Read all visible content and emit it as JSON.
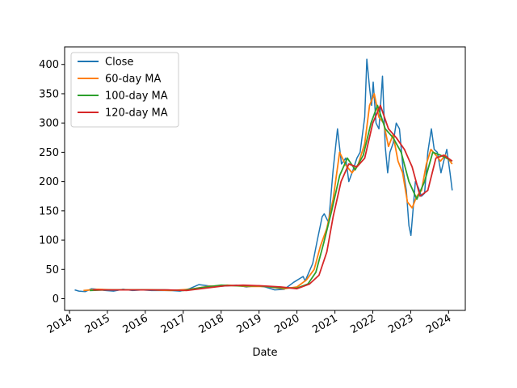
{
  "chart_data": {
    "type": "line",
    "title": "",
    "xlabel": "Date",
    "ylabel": "",
    "xlim": [
      "2013-11-15",
      "2024-06-10"
    ],
    "ylim": [
      -20,
      430
    ],
    "grid": false,
    "legend_position": "top-left",
    "x_tick_labels": [
      "2014",
      "2015",
      "2016",
      "2017",
      "2018",
      "2019",
      "2020",
      "2021",
      "2022",
      "2023",
      "2024"
    ],
    "x_tick_dates": [
      "2014-01-01",
      "2015-01-01",
      "2016-01-01",
      "2017-01-01",
      "2018-01-01",
      "2019-01-01",
      "2020-01-01",
      "2021-01-01",
      "2022-01-01",
      "2023-01-01",
      "2024-01-01"
    ],
    "y_ticks": [
      0,
      50,
      100,
      150,
      200,
      250,
      300,
      350,
      400
    ],
    "series": [
      {
        "name": "Close",
        "color": "#1f77b4",
        "x": [
          "2014-02-20",
          "2014-04-01",
          "2014-06-01",
          "2014-08-01",
          "2014-10-01",
          "2014-12-15",
          "2015-03-01",
          "2015-06-01",
          "2015-09-01",
          "2015-12-01",
          "2016-03-01",
          "2016-06-01",
          "2016-09-01",
          "2016-12-01",
          "2017-03-01",
          "2017-06-01",
          "2017-09-01",
          "2017-12-01",
          "2018-03-01",
          "2018-06-01",
          "2018-09-01",
          "2018-12-01",
          "2019-03-01",
          "2019-06-01",
          "2019-09-01",
          "2019-12-01",
          "2020-03-01",
          "2020-03-20",
          "2020-06-01",
          "2020-07-15",
          "2020-08-31",
          "2020-09-20",
          "2020-11-01",
          "2020-12-15",
          "2021-01-26",
          "2021-03-05",
          "2021-04-15",
          "2021-05-15",
          "2021-06-25",
          "2021-08-01",
          "2021-09-01",
          "2021-10-15",
          "2021-11-04",
          "2021-12-01",
          "2021-12-20",
          "2022-01-05",
          "2022-02-01",
          "2022-03-01",
          "2022-04-04",
          "2022-05-01",
          "2022-05-24",
          "2022-06-15",
          "2022-07-15",
          "2022-08-15",
          "2022-09-15",
          "2022-10-20",
          "2022-11-20",
          "2022-12-15",
          "2023-01-03",
          "2023-02-15",
          "2023-03-15",
          "2023-04-15",
          "2023-05-15",
          "2023-06-15",
          "2023-07-19",
          "2023-08-15",
          "2023-09-15",
          "2023-10-20",
          "2023-11-15",
          "2023-12-15",
          "2024-01-15",
          "2024-02-05"
        ],
        "y": [
          15,
          13,
          12,
          17,
          16,
          14,
          13,
          16,
          14,
          15,
          14,
          14,
          14,
          13,
          17,
          24,
          22,
          21,
          22,
          23,
          20,
          22,
          20,
          15,
          16,
          28,
          38,
          30,
          60,
          100,
          140,
          145,
          130,
          220,
          290,
          230,
          240,
          200,
          220,
          240,
          250,
          310,
          409,
          360,
          330,
          370,
          300,
          290,
          380,
          260,
          215,
          250,
          265,
          300,
          290,
          220,
          185,
          125,
          108,
          200,
          190,
          175,
          180,
          250,
          290,
          255,
          250,
          215,
          235,
          255,
          215,
          185
        ]
      },
      {
        "name": "60-day MA",
        "color": "#ff7f0e",
        "x": [
          "2014-05-15",
          "2014-10-01",
          "2015-03-01",
          "2015-09-01",
          "2016-03-01",
          "2016-09-01",
          "2017-03-01",
          "2017-09-01",
          "2018-03-01",
          "2018-09-01",
          "2019-03-01",
          "2019-09-01",
          "2020-01-01",
          "2020-04-01",
          "2020-06-15",
          "2020-08-15",
          "2020-10-15",
          "2020-12-15",
          "2021-02-15",
          "2021-04-15",
          "2021-06-15",
          "2021-08-15",
          "2021-10-15",
          "2021-12-01",
          "2022-01-15",
          "2022-03-01",
          "2022-04-15",
          "2022-06-01",
          "2022-07-15",
          "2022-09-01",
          "2022-10-15",
          "2022-12-01",
          "2023-01-15",
          "2023-03-01",
          "2023-04-15",
          "2023-06-01",
          "2023-07-15",
          "2023-09-01",
          "2023-10-15",
          "2023-12-01",
          "2024-02-05"
        ],
        "y": [
          14,
          16,
          15,
          15,
          15,
          14,
          16,
          21,
          23,
          21,
          21,
          17,
          20,
          32,
          50,
          90,
          120,
          170,
          250,
          228,
          215,
          230,
          265,
          330,
          350,
          310,
          300,
          260,
          280,
          235,
          215,
          165,
          155,
          175,
          185,
          230,
          255,
          245,
          235,
          245,
          230
        ]
      },
      {
        "name": "100-day MA",
        "color": "#2ca02c",
        "x": [
          "2014-07-15",
          "2015-01-01",
          "2015-07-01",
          "2016-01-01",
          "2016-07-01",
          "2017-01-01",
          "2017-07-01",
          "2018-01-01",
          "2018-07-01",
          "2019-01-01",
          "2019-07-01",
          "2020-01-01",
          "2020-04-15",
          "2020-07-01",
          "2020-09-15",
          "2020-12-01",
          "2021-02-15",
          "2021-05-01",
          "2021-07-15",
          "2021-10-01",
          "2021-12-15",
          "2022-02-15",
          "2022-05-01",
          "2022-07-15",
          "2022-10-01",
          "2022-12-15",
          "2023-03-01",
          "2023-05-15",
          "2023-08-01",
          "2023-10-15",
          "2024-02-05"
        ],
        "y": [
          14,
          15,
          15,
          15,
          15,
          14,
          19,
          23,
          22,
          22,
          19,
          18,
          25,
          45,
          95,
          150,
          210,
          240,
          220,
          245,
          300,
          330,
          290,
          275,
          250,
          200,
          170,
          200,
          250,
          245,
          235
        ]
      },
      {
        "name": "120-day MA",
        "color": "#d62728",
        "x": [
          "2014-08-15",
          "2015-02-01",
          "2015-08-01",
          "2016-02-01",
          "2016-08-01",
          "2017-02-01",
          "2017-08-01",
          "2018-02-01",
          "2018-08-01",
          "2019-02-01",
          "2019-08-01",
          "2020-01-01",
          "2020-05-01",
          "2020-08-01",
          "2020-10-15",
          "2020-12-15",
          "2021-03-01",
          "2021-05-15",
          "2021-08-01",
          "2021-10-15",
          "2022-01-01",
          "2022-03-15",
          "2022-06-01",
          "2022-08-15",
          "2022-11-01",
          "2023-01-15",
          "2023-04-01",
          "2023-06-15",
          "2023-09-01",
          "2023-11-15",
          "2024-02-05"
        ],
        "y": [
          15,
          15,
          15,
          15,
          15,
          14,
          18,
          22,
          23,
          22,
          20,
          17,
          25,
          40,
          80,
          140,
          200,
          230,
          225,
          240,
          300,
          330,
          290,
          275,
          255,
          225,
          175,
          185,
          240,
          245,
          235
        ]
      }
    ]
  }
}
